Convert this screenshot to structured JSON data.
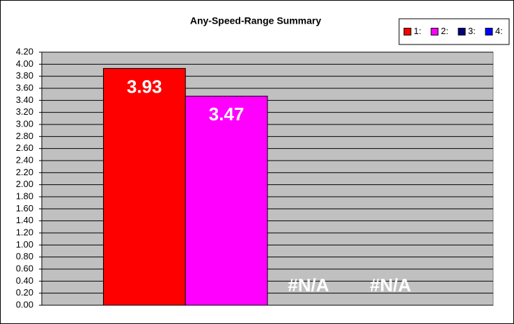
{
  "chart_data": {
    "type": "bar",
    "title": "Any-Speed-Range Summary",
    "categories": [
      null
    ],
    "series": [
      {
        "name": "1:",
        "color": "#ff0000",
        "values": [
          3.93
        ]
      },
      {
        "name": "2:",
        "color": "#ff00ff",
        "values": [
          3.47
        ]
      },
      {
        "name": "3:",
        "color": "#000080",
        "values": [
          null
        ],
        "value_labels": [
          "#N/A"
        ]
      },
      {
        "name": "4:",
        "color": "#0000ff",
        "values": [
          null
        ],
        "value_labels": [
          "#N/A"
        ]
      }
    ],
    "ylim": [
      0,
      4.2
    ],
    "yticks": [
      {
        "value": 0,
        "label": "0.00"
      },
      {
        "value": 0.2,
        "label": "0.20"
      },
      {
        "value": 0.4,
        "label": "0.40"
      },
      {
        "value": 0.6,
        "label": "0.60"
      },
      {
        "value": 0.8,
        "label": "0.80"
      },
      {
        "value": 1,
        "label": "1.00"
      },
      {
        "value": 1.2,
        "label": "1.20"
      },
      {
        "value": 1.4,
        "label": "1.40"
      },
      {
        "value": 1.6,
        "label": "1.60"
      },
      {
        "value": 1.8,
        "label": "1.80"
      },
      {
        "value": 2,
        "label": "2.00"
      },
      {
        "value": 2.2,
        "label": "2.20"
      },
      {
        "value": 2.4,
        "label": "2.40"
      },
      {
        "value": 2.6,
        "label": "2.60"
      },
      {
        "value": 2.8,
        "label": "2.80"
      },
      {
        "value": 3,
        "label": "3.00"
      },
      {
        "value": 3.2,
        "label": "3.20"
      },
      {
        "value": 3.4,
        "label": "3.40"
      },
      {
        "value": 3.6,
        "label": "3.60"
      },
      {
        "value": 3.8,
        "label": "3.80"
      },
      {
        "value": 4,
        "label": "4.00"
      },
      {
        "value": 4.2,
        "label": "4.20"
      }
    ],
    "grid": true,
    "plot_background": "#c0c0c0",
    "legend": "top-right"
  }
}
